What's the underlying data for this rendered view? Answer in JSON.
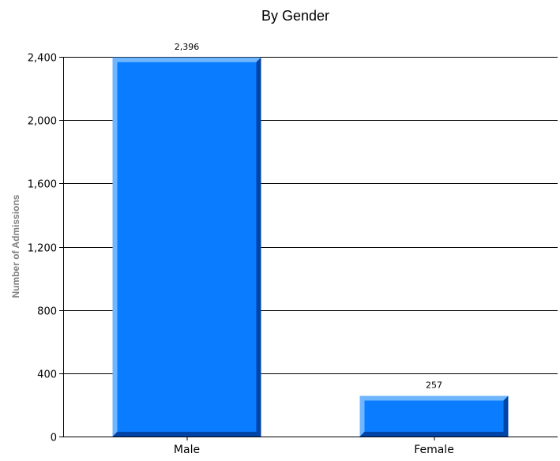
{
  "chart_data": {
    "type": "bar",
    "title": "By Gender",
    "xlabel": "",
    "ylabel": "Number of Admissions",
    "categories": [
      "Male",
      "Female"
    ],
    "values": [
      2396,
      257
    ],
    "data_labels": [
      "2,396",
      "257"
    ],
    "ylim": [
      0,
      2400
    ],
    "yticks": [
      0,
      400,
      800,
      1200,
      1600,
      2000,
      2400
    ],
    "ytick_labels": [
      "0",
      "400",
      "800",
      "1,200",
      "1,600",
      "2,000",
      "2,400"
    ],
    "grid": true,
    "legend": "none",
    "colors": {
      "bar_face": "#0a7cff",
      "bar_highlight": "#6fb6ff",
      "bar_shadow": "#0044a8",
      "gridline": "#000000"
    }
  }
}
